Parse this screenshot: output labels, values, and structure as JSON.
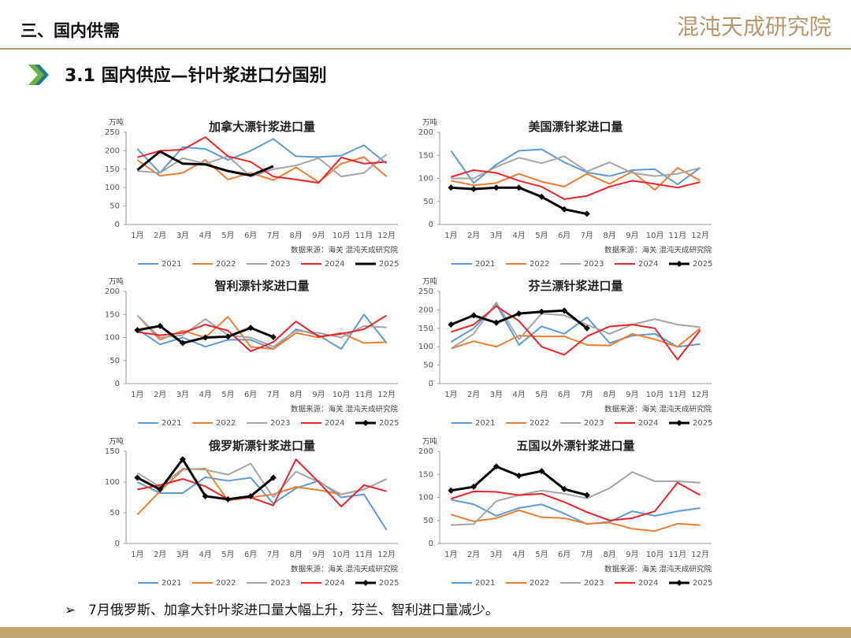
{
  "header": {
    "section": "三、国内供需",
    "logo": "混沌天成研究院",
    "subtitle": "3.1 国内供应—针叶浆进口分国别"
  },
  "footer": {
    "note": "7月俄罗斯、加拿大针叶浆进口量大幅上升，芬兰、智利进口量减少。"
  },
  "chart_data": [
    {
      "type": "line",
      "title": "加拿大漂针浆进口量",
      "y_unit": "万吨",
      "source": "数据来源：海关  混沌天成研究院",
      "categories": [
        "1月",
        "2月",
        "3月",
        "4月",
        "5月",
        "6月",
        "7月",
        "8月",
        "9月",
        "10月",
        "11月",
        "12月"
      ],
      "ylim": [
        0,
        250
      ],
      "yticks": [
        0,
        50,
        100,
        150,
        200,
        250
      ],
      "series": [
        {
          "name": "2021",
          "color": "#5b9bd5",
          "values": [
            205,
            140,
            210,
            205,
            175,
            200,
            232,
            185,
            183,
            187,
            215,
            165
          ]
        },
        {
          "name": "2022",
          "color": "#ed7d31",
          "values": [
            175,
            132,
            140,
            175,
            122,
            140,
            120,
            155,
            115,
            165,
            183,
            130
          ]
        },
        {
          "name": "2023",
          "color": "#a5a5a5",
          "values": [
            145,
            140,
            180,
            165,
            185,
            130,
            150,
            160,
            180,
            130,
            140,
            190
          ]
        },
        {
          "name": "2024",
          "color": "#e8242a",
          "values": [
            182,
            200,
            203,
            237,
            185,
            170,
            130,
            122,
            113,
            182,
            165,
            170
          ]
        },
        {
          "name": "2025",
          "color": "#000000",
          "values": [
            148,
            198,
            165,
            163,
            145,
            133,
            158,
            null,
            null,
            null,
            null,
            null
          ]
        }
      ]
    },
    {
      "type": "line",
      "title": "美国漂针浆进口量",
      "y_unit": "万吨",
      "source": "数据来源：海关  混沌天成研究院",
      "categories": [
        "1月",
        "2月",
        "3月",
        "4月",
        "5月",
        "6月",
        "7月",
        "8月",
        "9月",
        "10月",
        "11月",
        "12月"
      ],
      "ylim": [
        0,
        200
      ],
      "yticks": [
        0,
        50,
        100,
        150,
        200
      ],
      "series": [
        {
          "name": "2021",
          "color": "#5b9bd5",
          "values": [
            160,
            90,
            130,
            160,
            163,
            135,
            113,
            105,
            118,
            120,
            87,
            123
          ]
        },
        {
          "name": "2022",
          "color": "#ed7d31",
          "values": [
            95,
            85,
            90,
            110,
            93,
            82,
            110,
            88,
            115,
            75,
            123,
            95
          ]
        },
        {
          "name": "2023",
          "color": "#a5a5a5",
          "values": [
            100,
            100,
            125,
            145,
            133,
            148,
            115,
            135,
            112,
            105,
            110,
            123
          ]
        },
        {
          "name": "2024",
          "color": "#e8242a",
          "values": [
            103,
            118,
            112,
            95,
            82,
            55,
            62,
            82,
            95,
            88,
            80,
            92
          ]
        },
        {
          "name": "2025",
          "color": "#000000",
          "marker": true,
          "values": [
            80,
            77,
            80,
            80,
            60,
            33,
            23,
            null,
            null,
            null,
            null,
            null
          ]
        }
      ]
    },
    {
      "type": "line",
      "title": "智利漂针浆进口量",
      "y_unit": "万吨",
      "source": "数据来源：海关  混沌天成研究院",
      "categories": [
        "1月",
        "2月",
        "3月",
        "4月",
        "5月",
        "6月",
        "7月",
        "8月",
        "9月",
        "10月",
        "11月",
        "12月"
      ],
      "ylim": [
        0,
        200
      ],
      "yticks": [
        0,
        50,
        100,
        150,
        200
      ],
      "series": [
        {
          "name": "2021",
          "color": "#5b9bd5",
          "values": [
            118,
            85,
            100,
            80,
            95,
            95,
            75,
            118,
            105,
            75,
            150,
            88
          ]
        },
        {
          "name": "2022",
          "color": "#ed7d31",
          "values": [
            148,
            95,
            115,
            100,
            145,
            80,
            75,
            110,
            100,
            110,
            88,
            90
          ]
        },
        {
          "name": "2023",
          "color": "#a5a5a5",
          "values": [
            148,
            100,
            105,
            140,
            105,
            100,
            80,
            115,
            110,
            100,
            125,
            122
          ]
        },
        {
          "name": "2024",
          "color": "#e8242a",
          "values": [
            112,
            105,
            110,
            128,
            115,
            70,
            90,
            135,
            102,
            108,
            118,
            148
          ]
        },
        {
          "name": "2025",
          "color": "#000000",
          "marker": true,
          "values": [
            116,
            125,
            88,
            100,
            102,
            121,
            101,
            null,
            null,
            null,
            null,
            null
          ]
        }
      ]
    },
    {
      "type": "line",
      "title": "芬兰漂针浆进口量",
      "y_unit": "万吨",
      "source": "数据来源：海关  混沌天成研究院",
      "categories": [
        "1月",
        "2月",
        "3月",
        "4月",
        "5月",
        "6月",
        "7月",
        "8月",
        "9月",
        "10月",
        "11月",
        "12月"
      ],
      "ylim": [
        0,
        250
      ],
      "yticks": [
        0,
        50,
        100,
        150,
        200,
        250
      ],
      "series": [
        {
          "name": "2021",
          "color": "#5b9bd5",
          "values": [
            113,
            150,
            215,
            105,
            155,
            135,
            180,
            110,
            130,
            135,
            100,
            107
          ]
        },
        {
          "name": "2022",
          "color": "#ed7d31",
          "values": [
            95,
            115,
            100,
            130,
            128,
            128,
            105,
            103,
            135,
            120,
            100,
            150
          ]
        },
        {
          "name": "2023",
          "color": "#a5a5a5",
          "values": [
            95,
            135,
            220,
            120,
            190,
            185,
            160,
            135,
            160,
            175,
            160,
            153
          ]
        },
        {
          "name": "2024",
          "color": "#e8242a",
          "values": [
            140,
            160,
            210,
            170,
            100,
            78,
            128,
            155,
            160,
            150,
            65,
            145
          ]
        },
        {
          "name": "2025",
          "color": "#000000",
          "marker": true,
          "values": [
            160,
            185,
            165,
            190,
            195,
            198,
            150,
            null,
            null,
            null,
            null,
            null
          ]
        }
      ]
    },
    {
      "type": "line",
      "title": "俄罗斯漂针浆进口量",
      "y_unit": "万吨",
      "source": "数据来源：海关  混沌天成研究院",
      "categories": [
        "1月",
        "2月",
        "3月",
        "4月",
        "5月",
        "6月",
        "7月",
        "8月",
        "9月",
        "10月",
        "11月",
        "12月"
      ],
      "ylim": [
        0,
        150
      ],
      "yticks": [
        0,
        50,
        100,
        150
      ],
      "series": [
        {
          "name": "2021",
          "color": "#5b9bd5",
          "values": [
            100,
            82,
            82,
            108,
            102,
            107,
            65,
            90,
            102,
            75,
            80,
            22
          ]
        },
        {
          "name": "2022",
          "color": "#ed7d31",
          "values": [
            47,
            85,
            120,
            122,
            70,
            75,
            80,
            92,
            87,
            80,
            88,
            105
          ]
        },
        {
          "name": "2023",
          "color": "#a5a5a5",
          "values": [
            115,
            92,
            122,
            120,
            112,
            130,
            75,
            117,
            100,
            80,
            88,
            105
          ]
        },
        {
          "name": "2024",
          "color": "#e8242a",
          "values": [
            88,
            95,
            105,
            93,
            72,
            75,
            62,
            137,
            100,
            60,
            95,
            85
          ]
        },
        {
          "name": "2025",
          "color": "#000000",
          "marker": true,
          "values": [
            107,
            88,
            137,
            77,
            72,
            77,
            107,
            null,
            null,
            null,
            null,
            null
          ]
        }
      ]
    },
    {
      "type": "line",
      "title": "五国以外漂针浆进口量",
      "y_unit": "万吨",
      "source": "数据来源：海关  混沌天成研究院",
      "categories": [
        "1月",
        "2月",
        "3月",
        "4月",
        "5月",
        "6月",
        "7月",
        "8月",
        "9月",
        "10月",
        "11月",
        "12月"
      ],
      "ylim": [
        0,
        200
      ],
      "yticks": [
        0,
        50,
        100,
        150,
        200
      ],
      "series": [
        {
          "name": "2021",
          "color": "#5b9bd5",
          "values": [
            95,
            85,
            60,
            77,
            85,
            65,
            42,
            47,
            70,
            60,
            70,
            77
          ]
        },
        {
          "name": "2022",
          "color": "#ed7d31",
          "values": [
            63,
            48,
            55,
            72,
            57,
            55,
            43,
            45,
            32,
            27,
            43,
            40
          ]
        },
        {
          "name": "2023",
          "color": "#a5a5a5",
          "values": [
            40,
            42,
            92,
            105,
            115,
            108,
            98,
            120,
            155,
            135,
            135,
            132
          ]
        },
        {
          "name": "2024",
          "color": "#e8242a",
          "values": [
            97,
            113,
            112,
            105,
            108,
            90,
            68,
            50,
            55,
            70,
            132,
            105
          ]
        },
        {
          "name": "2025",
          "color": "#000000",
          "marker": true,
          "values": [
            115,
            123,
            167,
            147,
            157,
            118,
            105,
            null,
            null,
            null,
            null,
            null
          ]
        }
      ]
    }
  ]
}
